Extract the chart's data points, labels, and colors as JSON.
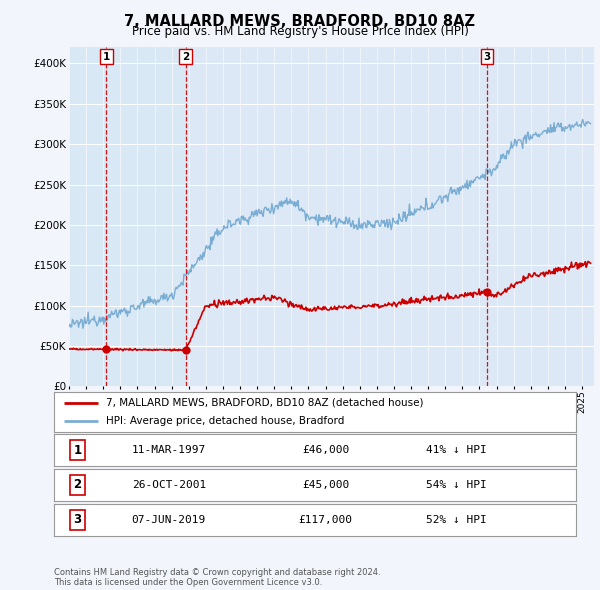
{
  "title": "7, MALLARD MEWS, BRADFORD, BD10 8AZ",
  "subtitle": "Price paid vs. HM Land Registry's House Price Index (HPI)",
  "bg_color": "#f2f5fb",
  "plot_bg_color": "#dce8f5",
  "y_ticks": [
    0,
    50000,
    100000,
    150000,
    200000,
    250000,
    300000,
    350000,
    400000
  ],
  "y_tick_labels": [
    "£0",
    "£50K",
    "£100K",
    "£150K",
    "£200K",
    "£250K",
    "£300K",
    "£350K",
    "£400K"
  ],
  "x_start_year": 1995,
  "x_end_year": 2025,
  "transactions": [
    {
      "date_num": 1997.19,
      "price": 46000,
      "label": "1"
    },
    {
      "date_num": 2001.82,
      "price": 45000,
      "label": "2"
    },
    {
      "date_num": 2019.43,
      "price": 117000,
      "label": "3"
    }
  ],
  "vline_color": "#cc0000",
  "marker_color": "#cc0000",
  "red_line_color": "#cc0000",
  "blue_line_color": "#7aadd4",
  "shade_color": "#d8e8f5",
  "legend_label_red": "7, MALLARD MEWS, BRADFORD, BD10 8AZ (detached house)",
  "legend_label_blue": "HPI: Average price, detached house, Bradford",
  "table_rows": [
    {
      "num": "1",
      "date": "11-MAR-1997",
      "price": "£46,000",
      "hpi": "41% ↓ HPI"
    },
    {
      "num": "2",
      "date": "26-OCT-2001",
      "price": "£45,000",
      "hpi": "54% ↓ HPI"
    },
    {
      "num": "3",
      "date": "07-JUN-2019",
      "price": "£117,000",
      "hpi": "52% ↓ HPI"
    }
  ],
  "footer": "Contains HM Land Registry data © Crown copyright and database right 2024.\nThis data is licensed under the Open Government Licence v3.0."
}
